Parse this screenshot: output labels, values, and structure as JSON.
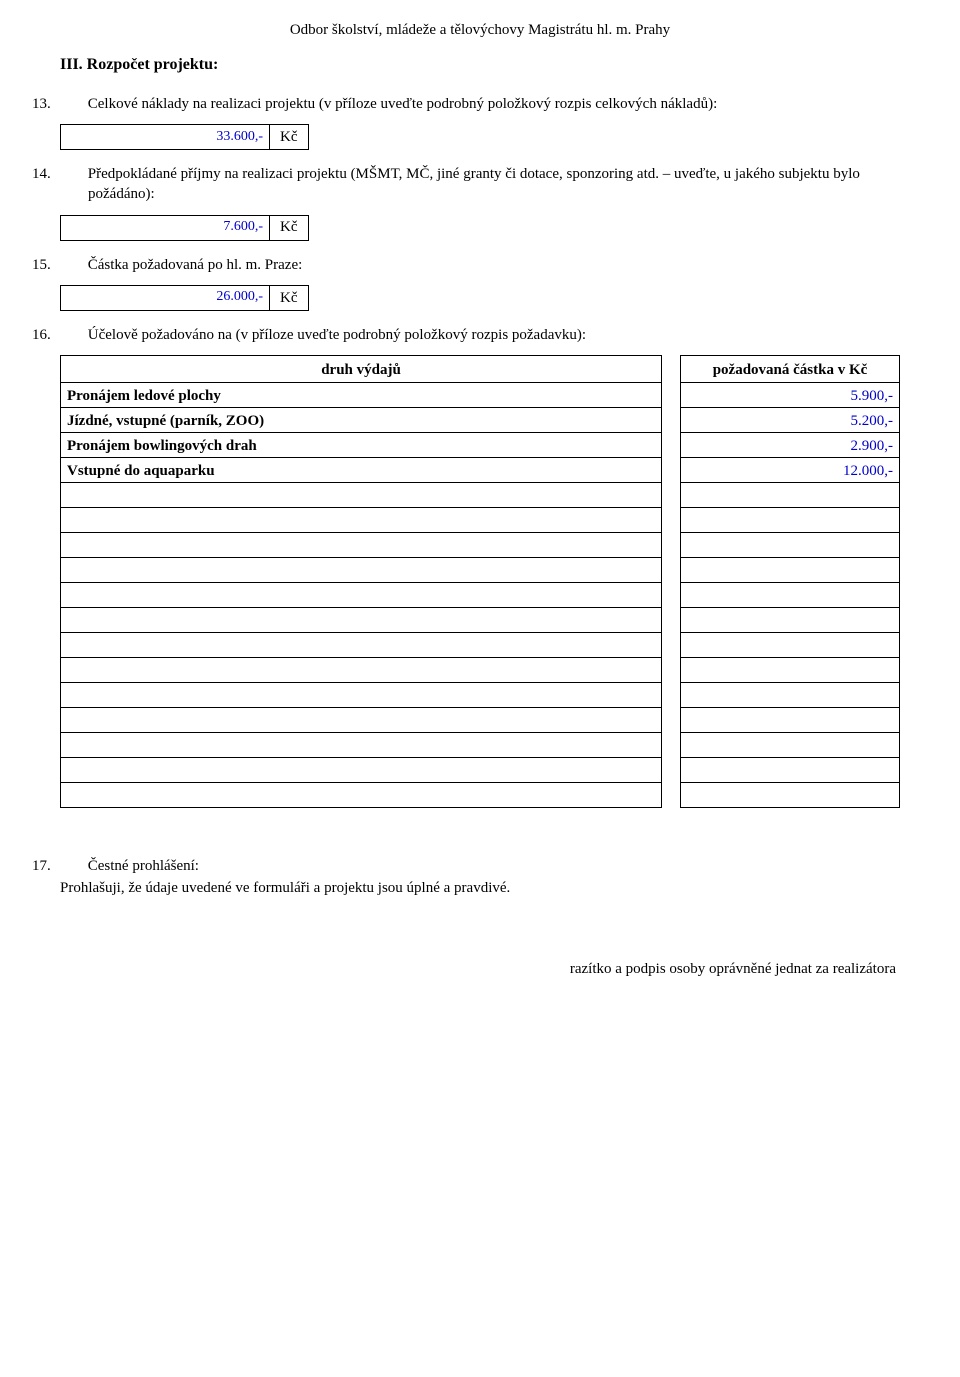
{
  "header": {
    "department": "Odbor školství, mládeže a tělovýchovy Magistrátu hl. m. Prahy"
  },
  "section": {
    "title": "III. Rozpočet projektu:"
  },
  "q13": {
    "num": "13.",
    "text": "Celkové náklady na realizaci projektu (v příloze uveďte podrobný položkový rozpis celkových nákladů):",
    "value": "33.600,-",
    "unit": "Kč"
  },
  "q14": {
    "num": "14.",
    "text": "Předpokládané příjmy na realizaci projektu (MŠMT, MČ, jiné granty či dotace, sponzoring atd. – uveďte, u jakého subjektu bylo požádáno):",
    "value": "7.600,-",
    "unit": "Kč"
  },
  "q15": {
    "num": "15.",
    "text": "Částka požadovaná po hl. m. Praze:",
    "value": "26.000,-",
    "unit": "Kč"
  },
  "q16": {
    "num": "16.",
    "text": "Účelově požadováno na (v příloze uveďte podrobný položkový rozpis požadavku):"
  },
  "table": {
    "header_left": "druh výdajů",
    "header_right": "požadovaná částka v Kč",
    "rows": [
      {
        "label": "Pronájem ledové plochy",
        "amount": "5.900,-"
      },
      {
        "label": "Jízdné, vstupné (parník, ZOO)",
        "amount": "5.200,-"
      },
      {
        "label": "Pronájem bowlingových drah",
        "amount": "2.900,-"
      },
      {
        "label": "Vstupné do aquaparku",
        "amount": "12.000,-"
      },
      {
        "label": "",
        "amount": ""
      },
      {
        "label": "",
        "amount": ""
      },
      {
        "label": "",
        "amount": ""
      },
      {
        "label": "",
        "amount": ""
      },
      {
        "label": "",
        "amount": ""
      },
      {
        "label": "",
        "amount": ""
      },
      {
        "label": "",
        "amount": ""
      },
      {
        "label": "",
        "amount": ""
      },
      {
        "label": "",
        "amount": ""
      },
      {
        "label": "",
        "amount": ""
      },
      {
        "label": "",
        "amount": ""
      },
      {
        "label": "",
        "amount": ""
      },
      {
        "label": "",
        "amount": ""
      }
    ]
  },
  "q17": {
    "num": "17.",
    "title": "Čestné prohlášení:",
    "body": "Prohlašuji, že údaje uvedené ve formuláři a projektu jsou úplné a pravdivé."
  },
  "footer": {
    "signature_line": "razítko a podpis osoby oprávněné jednat za realizátora"
  },
  "style": {
    "value_color": "#0000cc",
    "border_color": "#000000",
    "background": "#ffffff",
    "font_family": "Times New Roman"
  }
}
